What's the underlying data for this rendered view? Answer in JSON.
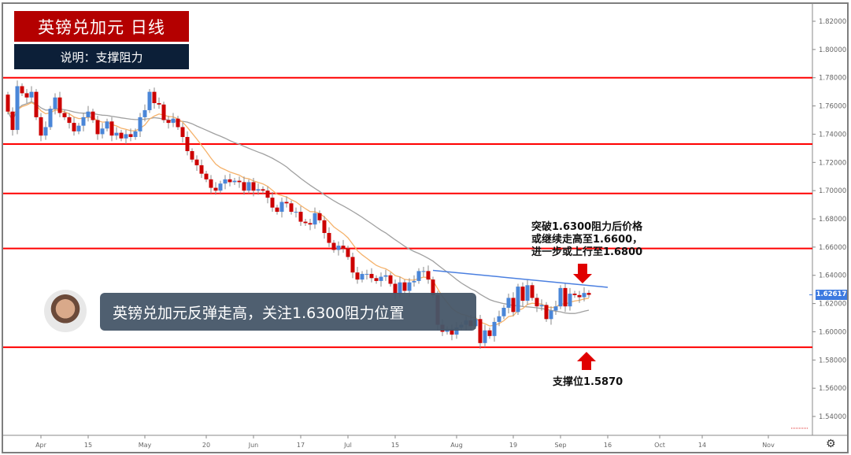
{
  "header": {
    "title": "英镑兑加元  日线",
    "subtitle": "说明：支撑阻力"
  },
  "banner": {
    "text": "英镑兑加元反弹走高，关注1.6300阻力位置"
  },
  "annotations": {
    "resistance_note": [
      "突破1.6300阻力后价格",
      "或继续走高至1.6600，",
      "进一步或上行至1.6800"
    ],
    "support_note": "支撑位1.5870"
  },
  "price_tag": "1.62617",
  "icons": {
    "settings": "gear-icon",
    "avatar": "presenter-avatar"
  },
  "chart_data": {
    "type": "candlestick",
    "colors": {
      "up": "#4a86d8",
      "down": "#cc0000",
      "fast_ma": "#f5b26b",
      "slow_ma": "#a0a0a0",
      "levels": "#ff0000",
      "trendline": "#4a7fe0"
    },
    "ylim": [
      1.53,
      1.83
    ],
    "y_ticks": [
      "1.82000",
      "1.80000",
      "1.78000",
      "1.76000",
      "1.74000",
      "1.72000",
      "1.70000",
      "1.68000",
      "1.66000",
      "1.64000",
      "1.62000",
      "1.60000",
      "1.58000",
      "1.56000",
      "1.54000"
    ],
    "x_ticks": [
      {
        "label": "Apr",
        "date": "04-01"
      },
      {
        "label": "15",
        "date": "04-15"
      },
      {
        "label": "May",
        "date": "05-01"
      },
      {
        "label": "20",
        "date": "05-20"
      },
      {
        "label": "Jun",
        "date": "06-03"
      },
      {
        "label": "17",
        "date": "06-17"
      },
      {
        "label": "Jul",
        "date": "07-01"
      },
      {
        "label": "15",
        "date": "07-15"
      },
      {
        "label": "Aug",
        "date": "08-01"
      },
      {
        "label": "19",
        "date": "08-19"
      },
      {
        "label": "Sep",
        "date": "09-02"
      },
      {
        "label": "16",
        "date": "09-16"
      },
      {
        "label": "Oct",
        "date": "10-01"
      },
      {
        "label": "14",
        "date": "10-14"
      },
      {
        "label": "Nov",
        "date": "11-01"
      }
    ],
    "first_open": 1.768,
    "close": [
      1.756,
      1.743,
      1.774,
      1.769,
      1.766,
      1.77,
      1.752,
      1.739,
      1.745,
      1.758,
      1.766,
      1.755,
      1.752,
      1.748,
      1.742,
      1.746,
      1.752,
      1.756,
      1.75,
      1.74,
      1.744,
      1.749,
      1.739,
      1.741,
      1.737,
      1.74,
      1.738,
      1.742,
      1.752,
      1.757,
      1.77,
      1.762,
      1.761,
      1.75,
      1.748,
      1.751,
      1.745,
      1.738,
      1.728,
      1.722,
      1.718,
      1.712,
      1.708,
      1.702,
      1.7,
      1.705,
      1.708,
      1.706,
      1.707,
      1.706,
      1.7,
      1.706,
      1.7,
      1.701,
      1.7,
      1.695,
      1.688,
      1.685,
      1.692,
      1.691,
      1.685,
      1.685,
      1.678,
      1.677,
      1.676,
      1.684,
      1.679,
      1.67,
      1.663,
      1.658,
      1.661,
      1.659,
      1.653,
      1.642,
      1.637,
      1.641,
      1.641,
      1.638,
      1.636,
      1.639,
      1.64,
      1.634,
      1.627,
      1.635,
      1.629,
      1.635,
      1.636,
      1.643,
      1.643,
      1.637,
      1.626,
      1.605,
      1.6,
      1.602,
      1.598,
      1.603,
      1.605,
      1.608,
      1.604,
      1.609,
      1.592,
      1.601,
      1.597,
      1.607,
      1.611,
      1.617,
      1.624,
      1.614,
      1.632,
      1.622,
      1.633,
      1.624,
      1.618,
      1.619,
      1.609,
      1.615,
      1.618,
      1.631,
      1.618,
      1.627,
      1.626,
      1.6245,
      1.6275,
      1.62617
    ],
    "horizontal_levels": [
      1.78,
      1.733,
      1.698,
      1.659,
      1.589
    ],
    "trendline": {
      "start": {
        "date": "07-25",
        "price": 1.6435
      },
      "end": {
        "date": "09-16",
        "price": 1.6315
      }
    },
    "last_price": 1.62617
  }
}
